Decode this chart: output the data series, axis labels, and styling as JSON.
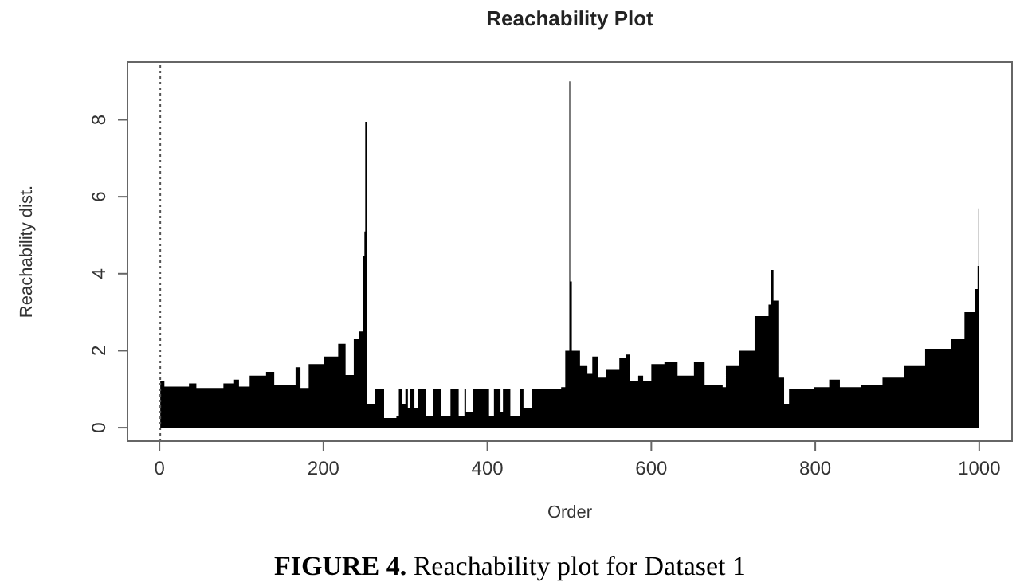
{
  "chart_data": {
    "type": "area",
    "title": "Reachability Plot",
    "xlabel": "Order",
    "ylabel": "Reachability dist.",
    "annotations": [
      "FIGURE 4. Reachability plot for Dataset 1"
    ],
    "x": [
      1,
      6,
      26,
      36,
      45,
      78,
      91,
      97,
      110,
      130,
      140,
      156,
      166,
      172,
      182,
      201,
      218,
      227,
      237,
      243,
      248,
      250,
      251,
      253,
      263,
      274,
      289,
      292,
      296,
      300,
      303,
      306,
      311,
      315,
      325,
      334,
      344,
      355,
      365,
      372,
      374,
      382,
      402,
      408,
      416,
      419,
      428,
      440,
      444,
      454,
      490,
      495,
      500,
      501,
      503,
      513,
      522,
      528,
      535,
      545,
      561,
      569,
      574,
      584,
      590,
      600,
      616,
      632,
      652,
      665,
      687,
      691,
      707,
      726,
      743,
      746,
      749,
      755,
      762,
      768,
      798,
      817,
      830,
      856,
      882,
      908,
      934,
      966,
      982,
      995,
      998,
      999,
      1000
    ],
    "series": [
      {
        "color": "#000000",
        "values": [
          1.2,
          1.07,
          1.07,
          1.15,
          1.03,
          1.15,
          1.25,
          1.07,
          1.35,
          1.45,
          1.1,
          1.1,
          1.57,
          1.03,
          1.65,
          1.85,
          2.18,
          1.37,
          2.3,
          2.5,
          4.46,
          5.1,
          7.95,
          0.6,
          1.0,
          0.25,
          0.3,
          1.0,
          0.6,
          1.0,
          0.5,
          1.0,
          0.5,
          1.0,
          0.3,
          1.0,
          0.3,
          1.0,
          0.3,
          1.0,
          0.4,
          1.0,
          0.3,
          1.0,
          0.4,
          1.0,
          0.3,
          1.0,
          0.5,
          1.0,
          1.05,
          2.0,
          9.0,
          3.8,
          2.0,
          1.6,
          1.4,
          1.85,
          1.3,
          1.5,
          1.8,
          1.9,
          1.2,
          1.35,
          1.2,
          1.65,
          1.7,
          1.35,
          1.7,
          1.1,
          1.05,
          1.6,
          2.0,
          2.9,
          3.2,
          4.1,
          3.3,
          1.3,
          0.6,
          1.0,
          1.05,
          1.25,
          1.05,
          1.1,
          1.3,
          1.6,
          2.05,
          2.3,
          3.0,
          3.6,
          4.2,
          5.7,
          0
        ]
      }
    ],
    "xlim": [
      -39,
      1040
    ],
    "ylim": [
      -0.35,
      9.5
    ],
    "xticks": [
      0,
      200,
      400,
      600,
      800,
      1000
    ],
    "yticks": [
      0,
      2,
      4,
      6,
      8
    ],
    "ref_lines": [
      {
        "axis": "x",
        "value": 1,
        "color": "#555555",
        "line_style": "dotted"
      }
    ]
  }
}
